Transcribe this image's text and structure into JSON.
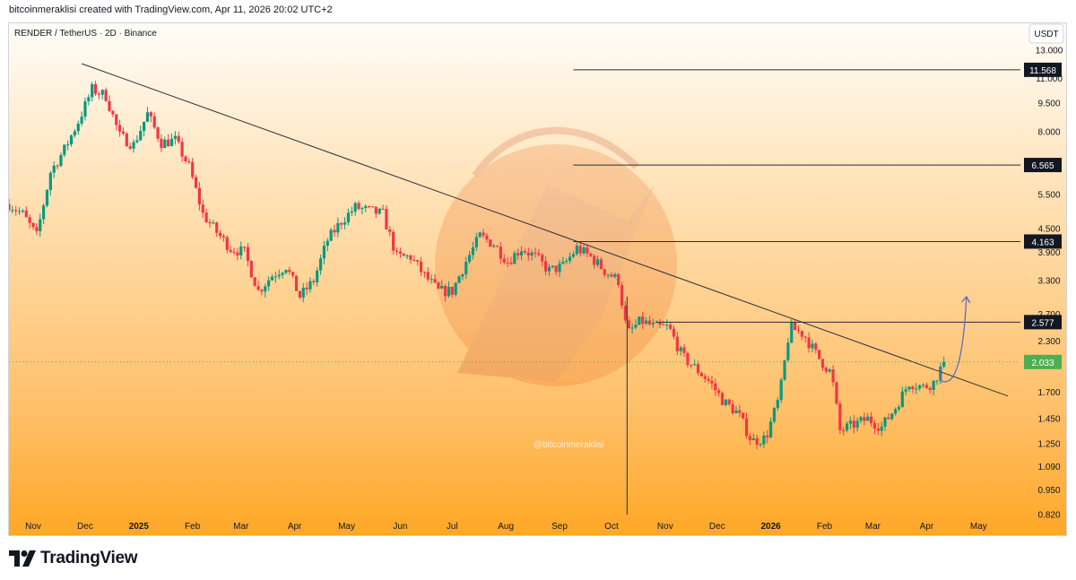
{
  "header": {
    "caption": "bitcoinmeraklisi created with TradingView.com, Apr 11, 2026 20:02 UTC+2"
  },
  "chart": {
    "symbol_line": "RENDER / TetherUS · 2D · Binance",
    "currency_button": "USDT",
    "watermark": "@bitcoinmeraklisi"
  },
  "footer": {
    "brand": "TradingView"
  },
  "colors": {
    "up": "#089981",
    "down": "#f23645",
    "line": "#2a2e39",
    "price_badge": "#4caf50",
    "bg_top": "#fffdf8",
    "bg_bottom": "#ffa726",
    "projection": "#5c6bc0"
  },
  "icons": [
    "tradingview-logo-icon"
  ],
  "chart_data": {
    "type": "candlestick",
    "scale": "log",
    "ylim": [
      0.82,
      13.0
    ],
    "y_ticks": [
      13.0,
      11.0,
      9.5,
      8.0,
      6.5,
      5.5,
      4.5,
      3.9,
      3.3,
      2.7,
      2.3,
      1.7,
      1.45,
      1.25,
      1.09,
      0.95,
      0.82
    ],
    "y_tick_labels": [
      "13.000",
      "11.000",
      "9.500",
      "8.000",
      "6.500",
      "5.500",
      "4.500",
      "3.900",
      "3.300",
      "2.700",
      "2.300",
      "1.700",
      "1.450",
      "1.250",
      "1.090",
      "0.950",
      "0.820"
    ],
    "x_labels": [
      "Nov",
      "Dec",
      "2025",
      "Feb",
      "Mar",
      "Apr",
      "May",
      "Jun",
      "Jul",
      "Aug",
      "Sep",
      "Oct",
      "Nov",
      "Dec",
      "2026",
      "Feb",
      "Mar",
      "Apr",
      "May"
    ],
    "x_label_bold": [
      false,
      false,
      true,
      false,
      false,
      false,
      false,
      false,
      false,
      false,
      false,
      false,
      false,
      false,
      true,
      false,
      false,
      false,
      false
    ],
    "x_start": "2024-10-18",
    "x_end": "2026-05-20",
    "last_price": 2.033,
    "price_levels": [
      {
        "value": 11.568,
        "label": "11.568",
        "from": "2025-09-09"
      },
      {
        "value": 6.565,
        "label": "6.565",
        "from": "2025-09-09"
      },
      {
        "value": 4.163,
        "label": "4.163",
        "from": "2025-09-09"
      },
      {
        "value": 2.577,
        "label": "2.577",
        "from": "2025-10-27"
      }
    ],
    "trendline": {
      "from": [
        "2024-11-29",
        12.0
      ],
      "to": [
        "2026-05-18",
        1.66
      ]
    },
    "wick_line": {
      "date": "2025-10-10",
      "low": 0.82,
      "high": 3.0
    },
    "projection": {
      "from": [
        "2026-04-09",
        1.82
      ],
      "via": [
        "2026-04-14",
        1.82
      ],
      "to": [
        "2026-04-24",
        3.0
      ]
    },
    "ohlc_anchors": [
      [
        "2024-10-18",
        5.2
      ],
      [
        "2024-10-26",
        4.9
      ],
      [
        "2024-11-03",
        4.3
      ],
      [
        "2024-11-11",
        6.3
      ],
      [
        "2024-11-19",
        7.2
      ],
      [
        "2024-11-27",
        8.5
      ],
      [
        "2024-12-05",
        10.3
      ],
      [
        "2024-12-13",
        9.9
      ],
      [
        "2024-12-21",
        7.8
      ],
      [
        "2024-12-29",
        7.4
      ],
      [
        "2025-01-06",
        8.9
      ],
      [
        "2025-01-14",
        7.5
      ],
      [
        "2025-01-22",
        7.6
      ],
      [
        "2025-01-30",
        6.5
      ],
      [
        "2025-02-07",
        4.9
      ],
      [
        "2025-02-15",
        4.4
      ],
      [
        "2025-02-23",
        4.0
      ],
      [
        "2025-03-03",
        3.9
      ],
      [
        "2025-03-11",
        3.1
      ],
      [
        "2025-03-19",
        3.4
      ],
      [
        "2025-03-27",
        3.6
      ],
      [
        "2025-04-04",
        3.0
      ],
      [
        "2025-04-12",
        3.3
      ],
      [
        "2025-04-20",
        4.2
      ],
      [
        "2025-04-28",
        4.7
      ],
      [
        "2025-05-06",
        5.1
      ],
      [
        "2025-05-14",
        5.0
      ],
      [
        "2025-05-22",
        4.9
      ],
      [
        "2025-05-30",
        3.8
      ],
      [
        "2025-06-07",
        3.8
      ],
      [
        "2025-06-15",
        3.4
      ],
      [
        "2025-06-23",
        3.1
      ],
      [
        "2025-07-01",
        3.1
      ],
      [
        "2025-07-09",
        3.7
      ],
      [
        "2025-07-17",
        4.3
      ],
      [
        "2025-07-25",
        4.1
      ],
      [
        "2025-08-02",
        3.7
      ],
      [
        "2025-08-10",
        4.0
      ],
      [
        "2025-08-18",
        3.8
      ],
      [
        "2025-08-26",
        3.5
      ],
      [
        "2025-09-03",
        3.6
      ],
      [
        "2025-09-11",
        4.0
      ],
      [
        "2025-09-19",
        3.8
      ],
      [
        "2025-09-27",
        3.5
      ],
      [
        "2025-10-05",
        3.3
      ],
      [
        "2025-10-10",
        2.4
      ],
      [
        "2025-10-18",
        2.6
      ],
      [
        "2025-10-26",
        2.5
      ],
      [
        "2025-11-03",
        2.5
      ],
      [
        "2025-11-11",
        2.1
      ],
      [
        "2025-11-19",
        1.95
      ],
      [
        "2025-11-27",
        1.8
      ],
      [
        "2025-12-05",
        1.6
      ],
      [
        "2025-12-13",
        1.5
      ],
      [
        "2025-12-21",
        1.27
      ],
      [
        "2025-12-29",
        1.29
      ],
      [
        "2026-01-06",
        1.65
      ],
      [
        "2026-01-12",
        2.5
      ],
      [
        "2026-01-20",
        2.4
      ],
      [
        "2026-01-28",
        2.1
      ],
      [
        "2026-02-05",
        1.9
      ],
      [
        "2026-02-10",
        1.35
      ],
      [
        "2026-02-18",
        1.4
      ],
      [
        "2026-02-26",
        1.45
      ],
      [
        "2026-03-06",
        1.38
      ],
      [
        "2026-03-14",
        1.55
      ],
      [
        "2026-03-22",
        1.8
      ],
      [
        "2026-03-30",
        1.75
      ],
      [
        "2026-04-05",
        1.8
      ],
      [
        "2026-04-11",
        2.033
      ]
    ]
  }
}
